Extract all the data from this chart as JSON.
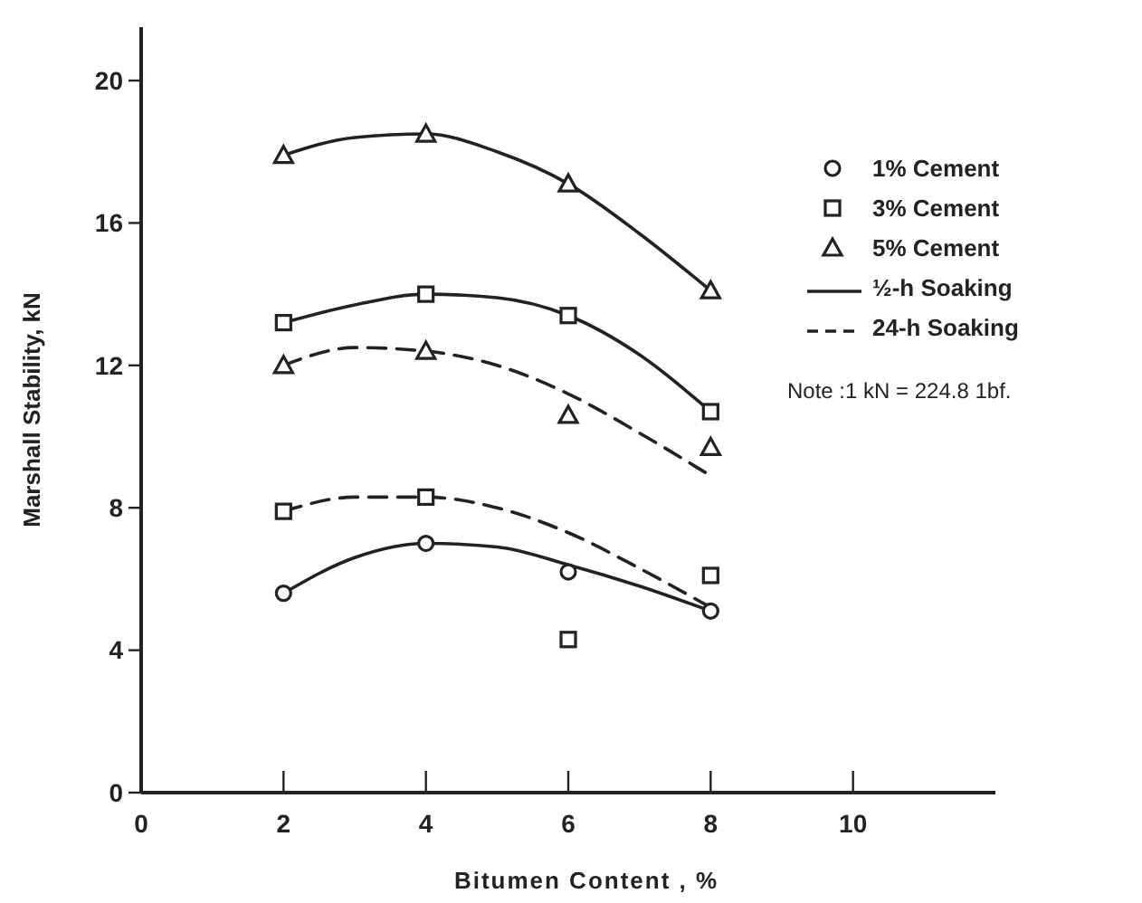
{
  "chart_data": {
    "type": "scatter",
    "xlabel": "Bitumen Content , %",
    "ylabel": "Marshall Stability, kN",
    "xlim": [
      0,
      12
    ],
    "ylim": [
      0,
      21.5
    ],
    "xticks": [
      0,
      2,
      4,
      6,
      8,
      10
    ],
    "yticks": [
      0,
      4,
      8,
      12,
      16,
      20
    ],
    "grid": false,
    "legend": "top right",
    "annotations": [
      "Note :1 kN = 224.8  1bf."
    ],
    "series": [
      {
        "name": "1% Cement",
        "marker": "circle",
        "color": "#222222",
        "x": [
          2,
          4,
          6,
          8
        ],
        "values": [
          5.6,
          7.0,
          6.2,
          5.1
        ]
      },
      {
        "name": "3% Cement",
        "marker": "square",
        "color": "#222222",
        "x": [
          2,
          4,
          6,
          8,
          2,
          4,
          6,
          8
        ],
        "values": [
          13.2,
          14.0,
          13.4,
          10.7,
          7.9,
          8.3,
          4.3,
          6.1
        ]
      },
      {
        "name": "5% Cement",
        "marker": "triangle",
        "color": "#222222",
        "x": [
          2,
          4,
          6,
          8,
          2,
          4,
          6,
          8
        ],
        "values": [
          17.9,
          18.5,
          17.1,
          14.1,
          12.0,
          12.4,
          10.6,
          9.7
        ]
      },
      {
        "name": "½-h Soaking",
        "type": "line",
        "line_style": "solid",
        "color": "#222222",
        "x": [
          2,
          3,
          4,
          5,
          6,
          7,
          8
        ],
        "values": [
          17.9,
          18.4,
          18.5,
          18.0,
          17.1,
          15.7,
          14.1
        ]
      },
      {
        "name": "24-h Soaking",
        "type": "line",
        "line_style": "dashed",
        "color": "#222222",
        "x": [
          2,
          3,
          4,
          5,
          6,
          7,
          8
        ],
        "values": [
          12.0,
          12.5,
          12.4,
          12.0,
          11.2,
          10.1,
          8.9
        ]
      },
      {
        "type": "line",
        "line_style": "solid",
        "color": "#222222",
        "x": [
          2,
          3,
          4,
          5,
          6,
          7,
          8
        ],
        "values": [
          13.2,
          13.7,
          14.0,
          13.9,
          13.4,
          12.3,
          10.7
        ]
      },
      {
        "type": "line",
        "line_style": "dashed",
        "color": "#222222",
        "x": [
          2,
          3,
          4,
          5,
          6,
          7,
          8
        ],
        "values": [
          7.9,
          8.3,
          8.3,
          8.0,
          7.3,
          6.3,
          5.2
        ]
      },
      {
        "type": "line",
        "line_style": "solid",
        "color": "#222222",
        "x": [
          2,
          3,
          4,
          5,
          6,
          7,
          8
        ],
        "values": [
          5.6,
          6.6,
          7.0,
          6.9,
          6.4,
          5.8,
          5.1
        ]
      }
    ]
  }
}
